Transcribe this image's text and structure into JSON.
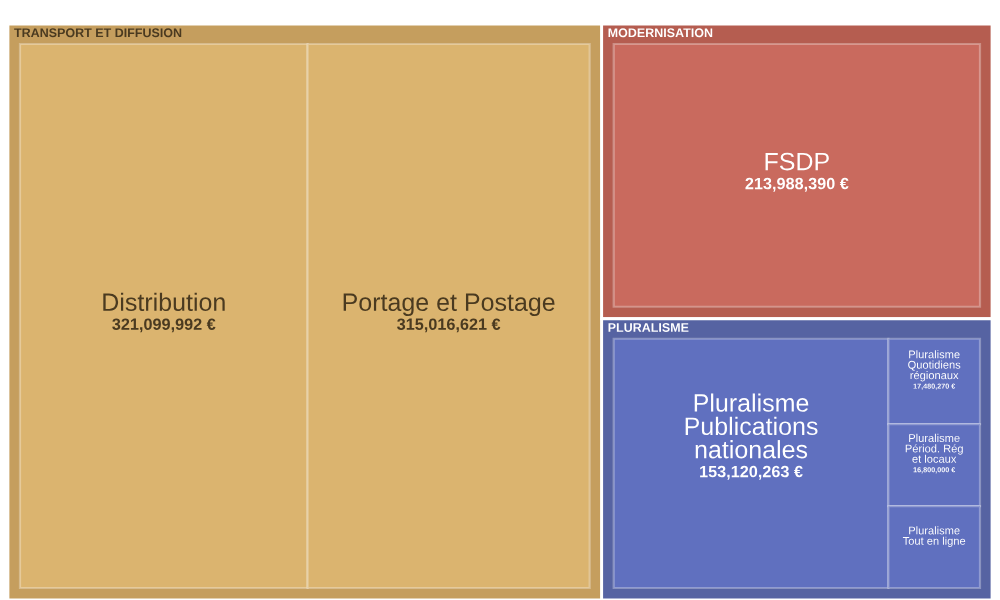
{
  "chart_data": {
    "type": "other",
    "categories": [
      "Distribution",
      "Portage et Postage",
      "FSDP",
      "Pluralisme Publications nationales",
      "Pluralisme Quotidiens régionaux",
      "Pluralisme Périod. Rég et locaux",
      "Pluralisme Tout en ligne"
    ],
    "series": [
      {
        "name": "TRANSPORT ET DIFFUSION",
        "color": "#dbb46f",
        "values": [
          321099992,
          315016621,
          null,
          null,
          null,
          null,
          null
        ],
        "value_labels": [
          "321,099,992 €",
          "315,016,621 €",
          null,
          null,
          null,
          null,
          null
        ]
      },
      {
        "name": "MODERNISATION",
        "color": "#c96a5e",
        "values": [
          null,
          null,
          213988390,
          null,
          null,
          null,
          null
        ],
        "value_labels": [
          null,
          null,
          "213,988,390 €",
          null,
          null,
          null,
          null
        ]
      },
      {
        "name": "PLURALISME",
        "color": "#6070bf",
        "values": [
          null,
          null,
          null,
          153120263,
          17480270,
          16800000,
          null
        ],
        "value_labels": [
          null,
          null,
          null,
          "153,120,263 €",
          "17,480,270 €",
          "16,800,000 €",
          null
        ]
      }
    ]
  }
}
